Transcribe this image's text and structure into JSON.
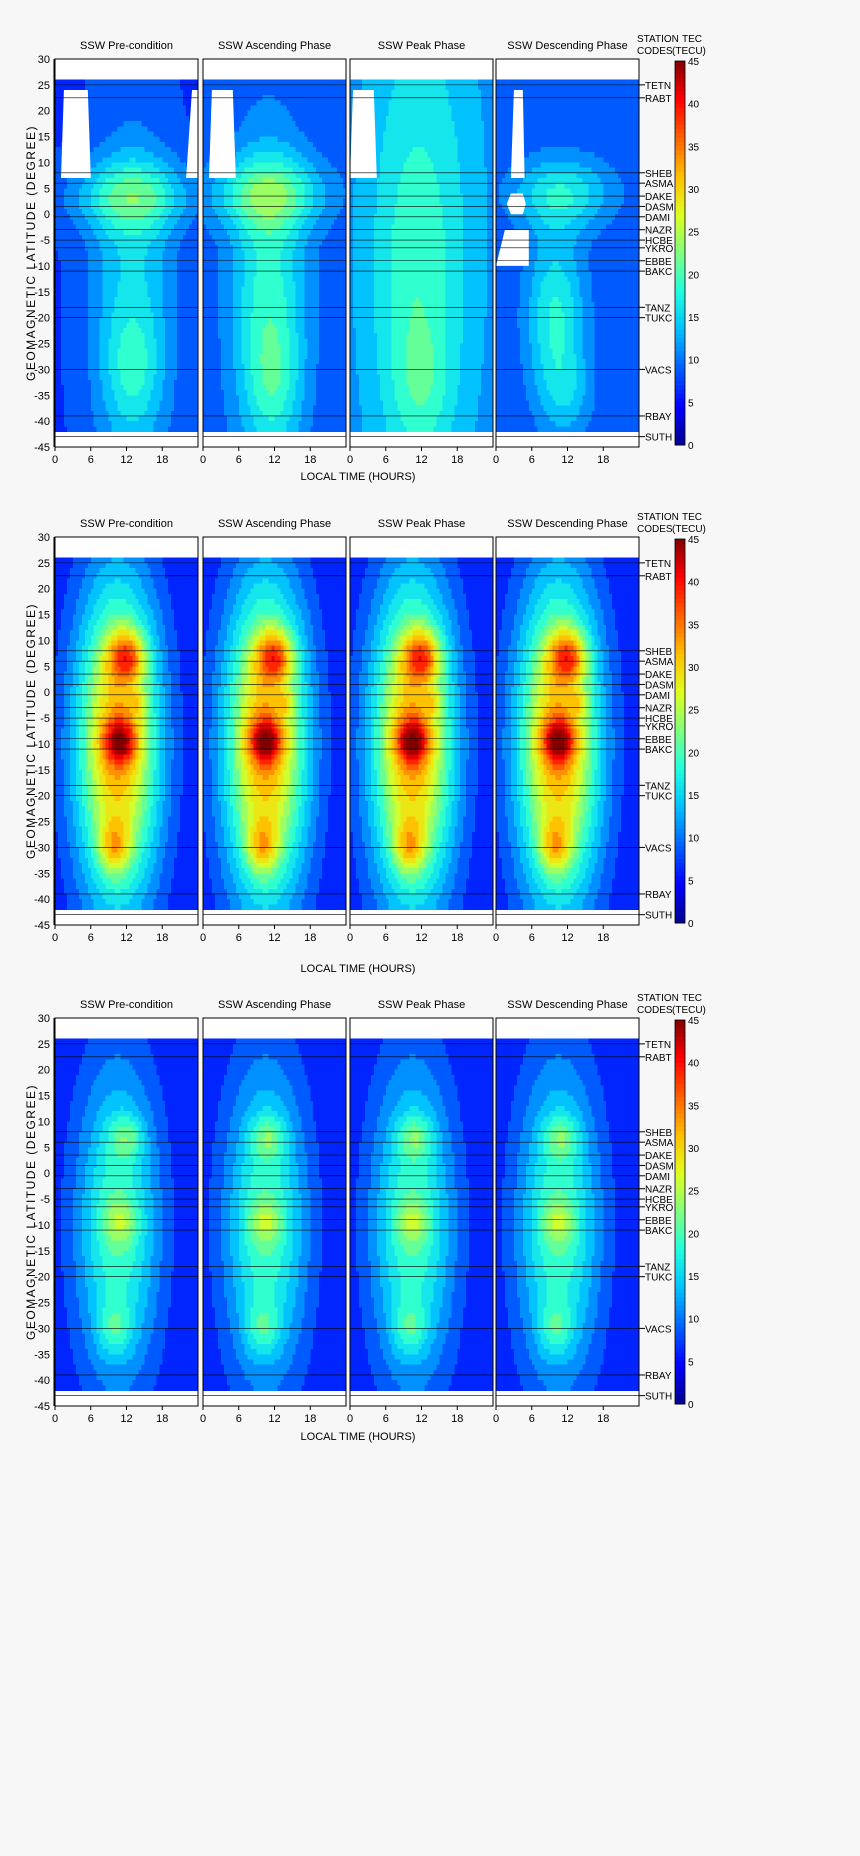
{
  "colors": {
    "page_bg": "#f7f7f7",
    "plot_bg": "#ffffff",
    "colormap": [
      "#00008f",
      "#0000ff",
      "#0060ff",
      "#00bfff",
      "#20ffdf",
      "#7fff80",
      "#dfff20",
      "#ffbf00",
      "#ff6000",
      "#ff0000",
      "#800000"
    ]
  },
  "shared_axes": {
    "ylabel": "GEOMAGNETIC LATITUDE (DEGREE)",
    "xlabel": "LOCAL TIME (HOURS)",
    "x_ticks": [
      "0",
      "6",
      "12",
      "18"
    ],
    "x_range": [
      0,
      24
    ],
    "y_ticks": [
      "30",
      "25",
      "20",
      "15",
      "10",
      "5",
      "0",
      "-5",
      "-10",
      "-15",
      "-20",
      "-25",
      "-30",
      "-35",
      "-40",
      "-45"
    ],
    "y_range": [
      -45,
      30
    ],
    "station_header_1": "STATION",
    "station_header_2": "CODES",
    "tec_header_1": "TEC",
    "tec_header_2": "(TECU)",
    "colorbar_range": [
      0,
      45
    ],
    "colorbar_ticks": [
      "45",
      "40",
      "35",
      "30",
      "25",
      "20",
      "15",
      "10",
      "5",
      "0"
    ]
  },
  "phases": [
    "SSW Pre-condition",
    "SSW Ascending Phase",
    "SSW Peak Phase",
    "SSW Descending Phase"
  ],
  "stations": [
    {
      "code": "TETN",
      "lat": 25
    },
    {
      "code": "RABT",
      "lat": 22.5
    },
    {
      "code": "SHEB",
      "lat": 8
    },
    {
      "code": "ASMA",
      "lat": 6
    },
    {
      "code": "DAKE",
      "lat": 3.5
    },
    {
      "code": "DASM",
      "lat": 1.5
    },
    {
      "code": "DAMI",
      "lat": -0.5
    },
    {
      "code": "NAZR",
      "lat": -3
    },
    {
      "code": "HCBE",
      "lat": -5
    },
    {
      "code": "YKRO",
      "lat": -6.5
    },
    {
      "code": "EBBE",
      "lat": -9
    },
    {
      "code": "BAKC",
      "lat": -11
    },
    {
      "code": "TANZ",
      "lat": -18
    },
    {
      "code": "TUKC",
      "lat": -20
    },
    {
      "code": "VACS",
      "lat": -30
    },
    {
      "code": "RBAY",
      "lat": -39
    },
    {
      "code": "SUTH",
      "lat": -43
    }
  ],
  "chart_data": [
    {
      "type": "heatmap",
      "xlabel": "LOCAL TIME (HOURS)",
      "ylabel": "GEOMAGNETIC LATITUDE (DEGREE)",
      "x_range": [
        0,
        24
      ],
      "y_range": [
        -45,
        30
      ],
      "colorbar_range": [
        0,
        45
      ],
      "data_lat_range": [
        -42,
        26
      ],
      "panels": [
        {
          "title": "SSW Pre-condition",
          "bg": 7,
          "blobs": [
            [
              13,
              3.5,
              7,
              5,
              10
            ],
            [
              13,
              -20,
              5,
              25,
              9
            ],
            [
              13,
              -30,
              3,
              7,
              4
            ]
          ],
          "gaps": [
            [
              [
                1.5,
                24
              ],
              [
                5.5,
                24
              ],
              [
                6,
                7
              ],
              [
                1,
                7
              ]
            ],
            [
              [
                23,
                24
              ],
              [
                24,
                24
              ],
              [
                24,
                7
              ],
              [
                22,
                7
              ]
            ]
          ]
        },
        {
          "title": "SSW Ascending Phase",
          "bg": 8,
          "blobs": [
            [
              11,
              4,
              7,
              5,
              10
            ],
            [
              11,
              -18,
              4.5,
              22,
              11
            ],
            [
              12,
              -33,
              3,
              8,
              4
            ]
          ],
          "gaps": [
            [
              [
                1.5,
                24
              ],
              [
                5,
                24
              ],
              [
                5.5,
                7
              ],
              [
                1,
                7
              ]
            ]
          ]
        },
        {
          "title": "SSW Peak Phase",
          "bg": 10,
          "blobs": [
            [
              12,
              -2,
              8,
              45,
              6
            ],
            [
              11,
              -18,
              5,
              25,
              4
            ],
            [
              12,
              -33,
              3,
              8,
              3
            ]
          ],
          "gaps": [
            [
              [
                0.5,
                24
              ],
              [
                4,
                24
              ],
              [
                4.5,
                7
              ],
              [
                0,
                7
              ]
            ]
          ]
        },
        {
          "title": "SSW Descending Phase",
          "bg": 8,
          "blobs": [
            [
              11,
              4,
              6,
              5,
              9
            ],
            [
              10,
              -20,
              3.5,
              12,
              10
            ],
            [
              12,
              -35,
              3,
              6,
              4
            ]
          ],
          "gaps": [
            [
              [
                3,
                24
              ],
              [
                4.5,
                24
              ],
              [
                4.8,
                7
              ],
              [
                2.5,
                7
              ]
            ],
            [
              [
                2.5,
                4
              ],
              [
                4.5,
                4
              ],
              [
                5,
                2
              ],
              [
                4.5,
                0
              ],
              [
                2.5,
                0
              ],
              [
                1.8,
                2
              ]
            ],
            [
              [
                1.5,
                -3
              ],
              [
                5.5,
                -3
              ],
              [
                5.5,
                -10
              ],
              [
                0,
                -10
              ]
            ]
          ]
        }
      ]
    },
    {
      "type": "heatmap",
      "xlabel": "LOCAL TIME (HOURS)",
      "ylabel": "GEOMAGNETIC LATITUDE (DEGREE)",
      "x_range": [
        0,
        24
      ],
      "y_range": [
        -45,
        30
      ],
      "colorbar_range": [
        0,
        45
      ],
      "data_lat_range": [
        -42,
        26
      ],
      "panels": [
        {
          "title": "SSW Pre-condition",
          "bg": 5,
          "blobs": [
            [
              10.5,
              -10,
              5,
              22,
              28
            ],
            [
              12,
              7,
              2.2,
              3.5,
              15
            ],
            [
              11,
              -9.5,
              2,
              3,
              14
            ],
            [
              10,
              -30,
              1.8,
              3.5,
              10
            ],
            [
              14,
              -2,
              1,
              1.5,
              5
            ]
          ]
        },
        {
          "title": "SSW Ascending Phase",
          "bg": 5,
          "blobs": [
            [
              10.5,
              -10,
              5,
              22,
              28
            ],
            [
              12,
              7,
              2.2,
              3.5,
              15
            ],
            [
              10.5,
              -9.5,
              2,
              3,
              14
            ],
            [
              10,
              -30,
              1.8,
              3.5,
              10
            ],
            [
              14,
              -2,
              1,
              1.5,
              5
            ]
          ]
        },
        {
          "title": "SSW Peak Phase",
          "bg": 5,
          "blobs": [
            [
              10.5,
              -10,
              5,
              22,
              28
            ],
            [
              12,
              7,
              2.2,
              3.5,
              15
            ],
            [
              10.5,
              -9.5,
              2,
              3,
              14
            ],
            [
              10,
              -30,
              1.8,
              3.5,
              10
            ],
            [
              14,
              -2,
              1,
              1.5,
              5
            ]
          ]
        },
        {
          "title": "SSW Descending Phase",
          "bg": 5,
          "blobs": [
            [
              10.5,
              -10,
              5,
              22,
              28
            ],
            [
              12,
              7,
              2.2,
              3.5,
              15
            ],
            [
              10.5,
              -9.5,
              2,
              3,
              14
            ],
            [
              10,
              -30,
              1.8,
              3.5,
              10
            ],
            [
              14,
              -2,
              1,
              1.5,
              5
            ]
          ]
        }
      ]
    },
    {
      "type": "heatmap",
      "xlabel": "LOCAL TIME (HOURS)",
      "ylabel": "GEOMAGNETIC LATITUDE (DEGREE)",
      "x_range": [
        0,
        24
      ],
      "y_range": [
        -45,
        30
      ],
      "colorbar_range": [
        0,
        45
      ],
      "data_lat_range": [
        -42,
        26
      ],
      "panels": [
        {
          "title": "SSW Pre-condition",
          "bg": 5,
          "blobs": [
            [
              10.5,
              -10,
              5,
              22,
              15
            ],
            [
              12,
              7,
              2,
              3,
              7
            ],
            [
              11,
              -9.5,
              2,
              3,
              6
            ],
            [
              10,
              -30,
              2,
              3.5,
              6
            ]
          ]
        },
        {
          "title": "SSW Ascending Phase",
          "bg": 5,
          "blobs": [
            [
              10.5,
              -10,
              5,
              22,
              15
            ],
            [
              11,
              7,
              2,
              3,
              7
            ],
            [
              10.5,
              -9.5,
              2,
              3,
              6
            ],
            [
              10,
              -30,
              2,
              3.5,
              6
            ]
          ]
        },
        {
          "title": "SSW Peak Phase",
          "bg": 5,
          "blobs": [
            [
              10.5,
              -10,
              5,
              22,
              15
            ],
            [
              11,
              7,
              2,
              3,
              7
            ],
            [
              10.5,
              -9.5,
              2,
              3,
              6
            ],
            [
              10,
              -30,
              2,
              3.5,
              6
            ]
          ]
        },
        {
          "title": "SSW Descending Phase",
          "bg": 5,
          "blobs": [
            [
              10.5,
              -10,
              5,
              22,
              15
            ],
            [
              11,
              7,
              2,
              3,
              7
            ],
            [
              10.5,
              -9.5,
              2,
              3,
              6
            ],
            [
              10,
              -30,
              2,
              3.5,
              6
            ]
          ]
        }
      ]
    }
  ]
}
